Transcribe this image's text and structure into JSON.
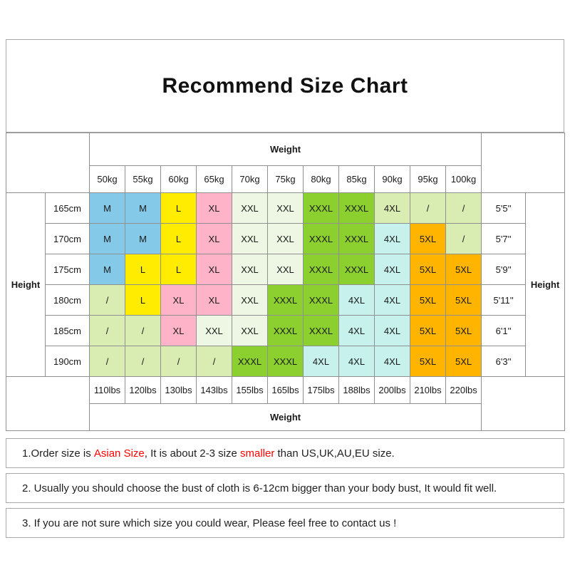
{
  "chart_data": {
    "type": "table",
    "title": "Recommend Size Chart",
    "top_header": "Weight",
    "bottom_header": "Weight",
    "left_header": "Height",
    "right_header": "Height",
    "weights_kg": [
      "50kg",
      "55kg",
      "60kg",
      "65kg",
      "70kg",
      "75kg",
      "80kg",
      "85kg",
      "90kg",
      "95kg",
      "100kg"
    ],
    "weights_lbs": [
      "110lbs",
      "120lbs",
      "130lbs",
      "143lbs",
      "155lbs",
      "165lbs",
      "175lbs",
      "188lbs",
      "200lbs",
      "210lbs",
      "220lbs"
    ],
    "rows": [
      {
        "cm": "165cm",
        "ft": "5'5''",
        "cells": [
          [
            "M",
            "blue"
          ],
          [
            "M",
            "blue"
          ],
          [
            "L",
            "yellow"
          ],
          [
            "XL",
            "pink"
          ],
          [
            "XXL",
            "pale"
          ],
          [
            "XXL",
            "pale"
          ],
          [
            "XXXL",
            "green"
          ],
          [
            "XXXL",
            "green"
          ],
          [
            "4XL",
            "lgreen"
          ],
          [
            "/",
            "lgreen"
          ],
          [
            "/",
            "lgreen"
          ]
        ]
      },
      {
        "cm": "170cm",
        "ft": "5'7''",
        "cells": [
          [
            "M",
            "blue"
          ],
          [
            "M",
            "blue"
          ],
          [
            "L",
            "yellow"
          ],
          [
            "XL",
            "pink"
          ],
          [
            "XXL",
            "pale"
          ],
          [
            "XXL",
            "pale"
          ],
          [
            "XXXL",
            "green"
          ],
          [
            "XXXL",
            "green"
          ],
          [
            "4XL",
            "cyan"
          ],
          [
            "5XL",
            "orange"
          ],
          [
            "/",
            "lgreen"
          ]
        ]
      },
      {
        "cm": "175cm",
        "ft": "5'9''",
        "cells": [
          [
            "M",
            "blue"
          ],
          [
            "L",
            "yellow"
          ],
          [
            "L",
            "yellow"
          ],
          [
            "XL",
            "pink"
          ],
          [
            "XXL",
            "pale"
          ],
          [
            "XXL",
            "pale"
          ],
          [
            "XXXL",
            "green"
          ],
          [
            "XXXL",
            "green"
          ],
          [
            "4XL",
            "cyan"
          ],
          [
            "5XL",
            "orange"
          ],
          [
            "5XL",
            "orange"
          ]
        ]
      },
      {
        "cm": "180cm",
        "ft": "5'11''",
        "cells": [
          [
            "/",
            "lgreen"
          ],
          [
            "L",
            "yellow"
          ],
          [
            "XL",
            "pink"
          ],
          [
            "XL",
            "pink"
          ],
          [
            "XXL",
            "pale"
          ],
          [
            "XXXL",
            "green"
          ],
          [
            "XXXL",
            "green"
          ],
          [
            "4XL",
            "cyan"
          ],
          [
            "4XL",
            "cyan"
          ],
          [
            "5XL",
            "orange"
          ],
          [
            "5XL",
            "orange"
          ]
        ]
      },
      {
        "cm": "185cm",
        "ft": "6'1''",
        "cells": [
          [
            "/",
            "lgreen"
          ],
          [
            "/",
            "lgreen"
          ],
          [
            "XL",
            "pink"
          ],
          [
            "XXL",
            "pale"
          ],
          [
            "XXL",
            "pale"
          ],
          [
            "XXXL",
            "green"
          ],
          [
            "XXXL",
            "green"
          ],
          [
            "4XL",
            "cyan"
          ],
          [
            "4XL",
            "cyan"
          ],
          [
            "5XL",
            "orange"
          ],
          [
            "5XL",
            "orange"
          ]
        ]
      },
      {
        "cm": "190cm",
        "ft": "6'3''",
        "cells": [
          [
            "/",
            "lgreen"
          ],
          [
            "/",
            "lgreen"
          ],
          [
            "/",
            "lgreen"
          ],
          [
            "/",
            "lgreen"
          ],
          [
            "XXXL",
            "green"
          ],
          [
            "XXXL",
            "green"
          ],
          [
            "4XL",
            "cyan"
          ],
          [
            "4XL",
            "cyan"
          ],
          [
            "4XL",
            "cyan"
          ],
          [
            "5XL",
            "orange"
          ],
          [
            "5XL",
            "orange"
          ]
        ]
      }
    ]
  },
  "colors": {
    "blue": "#85C9E8",
    "yellow": "#FFEC00",
    "pink": "#FFB3C8",
    "pale": "#EDF7E3",
    "green": "#8BD02F",
    "lgreen": "#D9EDB3",
    "cyan": "#C7F1EC",
    "orange": "#FFB400"
  },
  "notes": [
    {
      "segments": [
        {
          "text": "1.Order size is ",
          "red": false
        },
        {
          "text": "Asian Size",
          "red": true
        },
        {
          "text": ", It is about 2-3 size ",
          "red": false
        },
        {
          "text": "smaller",
          "red": true
        },
        {
          "text": " than US,UK,AU,EU size.",
          "red": false
        }
      ]
    },
    {
      "segments": [
        {
          "text": "2. Usually you should choose the bust of cloth is 6-12cm bigger than your body bust, It would fit well.",
          "red": false
        }
      ]
    },
    {
      "segments": [
        {
          "text": "3. If you are not sure which size you could wear, Please feel free to contact us !",
          "red": false
        }
      ]
    }
  ]
}
